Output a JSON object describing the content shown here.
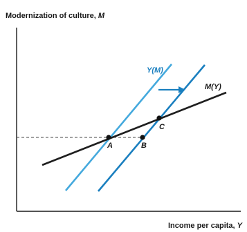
{
  "axes": {
    "y_title": "Modernization of culture, ",
    "y_var": "M",
    "x_title": "Income per capita, ",
    "x_var": "Y"
  },
  "curves": {
    "ym_label": "Y(M)",
    "my_label": "M(Y)"
  },
  "points": {
    "a": "A",
    "b": "B",
    "c": "C"
  },
  "colors": {
    "axis": "#1a1a1a",
    "m_curve": "#1f1f1f",
    "y_curve_original": "#44a9dd",
    "y_curve_shifted": "#1a7fbf",
    "shift_arrow": "#1a7fbf",
    "dashed_line": "#444444"
  }
}
